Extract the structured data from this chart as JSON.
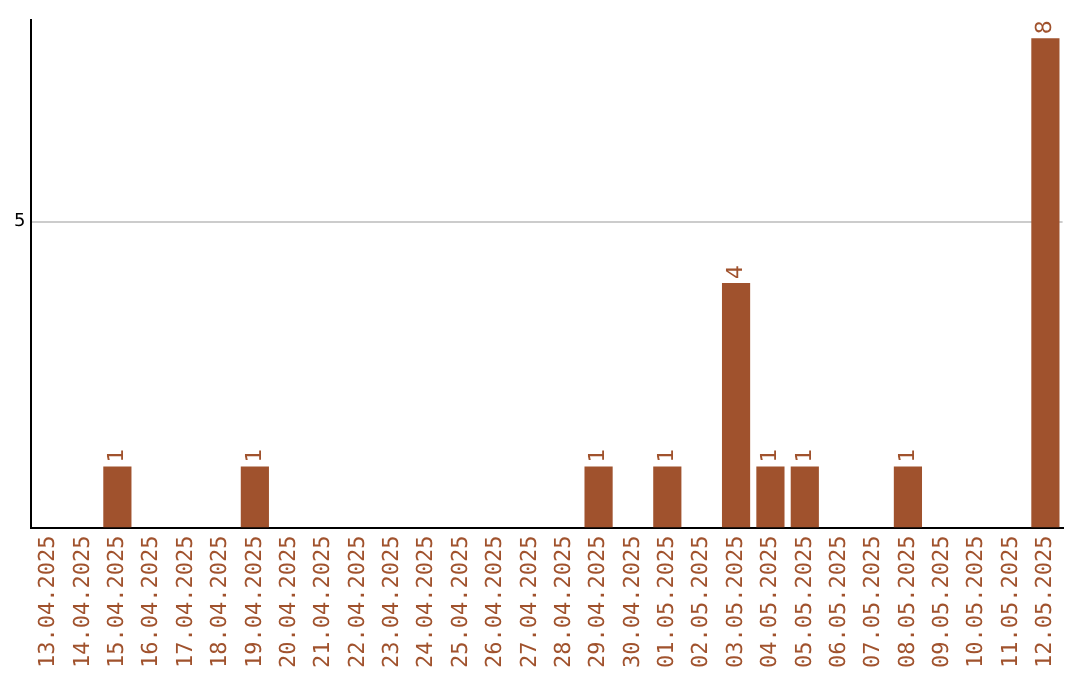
{
  "chart_data": {
    "type": "bar",
    "categories": [
      "13.04.2025",
      "14.04.2025",
      "15.04.2025",
      "16.04.2025",
      "17.04.2025",
      "18.04.2025",
      "19.04.2025",
      "20.04.2025",
      "21.04.2025",
      "22.04.2025",
      "23.04.2025",
      "24.04.2025",
      "25.04.2025",
      "26.04.2025",
      "27.04.2025",
      "28.04.2025",
      "29.04.2025",
      "30.04.2025",
      "01.05.2025",
      "02.05.2025",
      "03.05.2025",
      "04.05.2025",
      "05.05.2025",
      "06.05.2025",
      "07.05.2025",
      "08.05.2025",
      "09.05.2025",
      "10.05.2025",
      "11.05.2025",
      "12.05.2025"
    ],
    "values": [
      0,
      0,
      1,
      0,
      0,
      0,
      1,
      0,
      0,
      0,
      0,
      0,
      0,
      0,
      0,
      0,
      1,
      0,
      1,
      0,
      4,
      1,
      1,
      0,
      0,
      1,
      0,
      0,
      0,
      8
    ],
    "value_labels": [
      null,
      null,
      "1",
      null,
      null,
      null,
      "1",
      null,
      null,
      null,
      null,
      null,
      null,
      null,
      null,
      null,
      "1",
      null,
      "1",
      null,
      "4",
      "1",
      "1",
      null,
      null,
      "1",
      null,
      null,
      null,
      "8"
    ],
    "color": "#a0522d",
    "ylim": [
      0,
      8.3
    ],
    "yticks": [
      5
    ],
    "grid": "y",
    "legend": false
  }
}
